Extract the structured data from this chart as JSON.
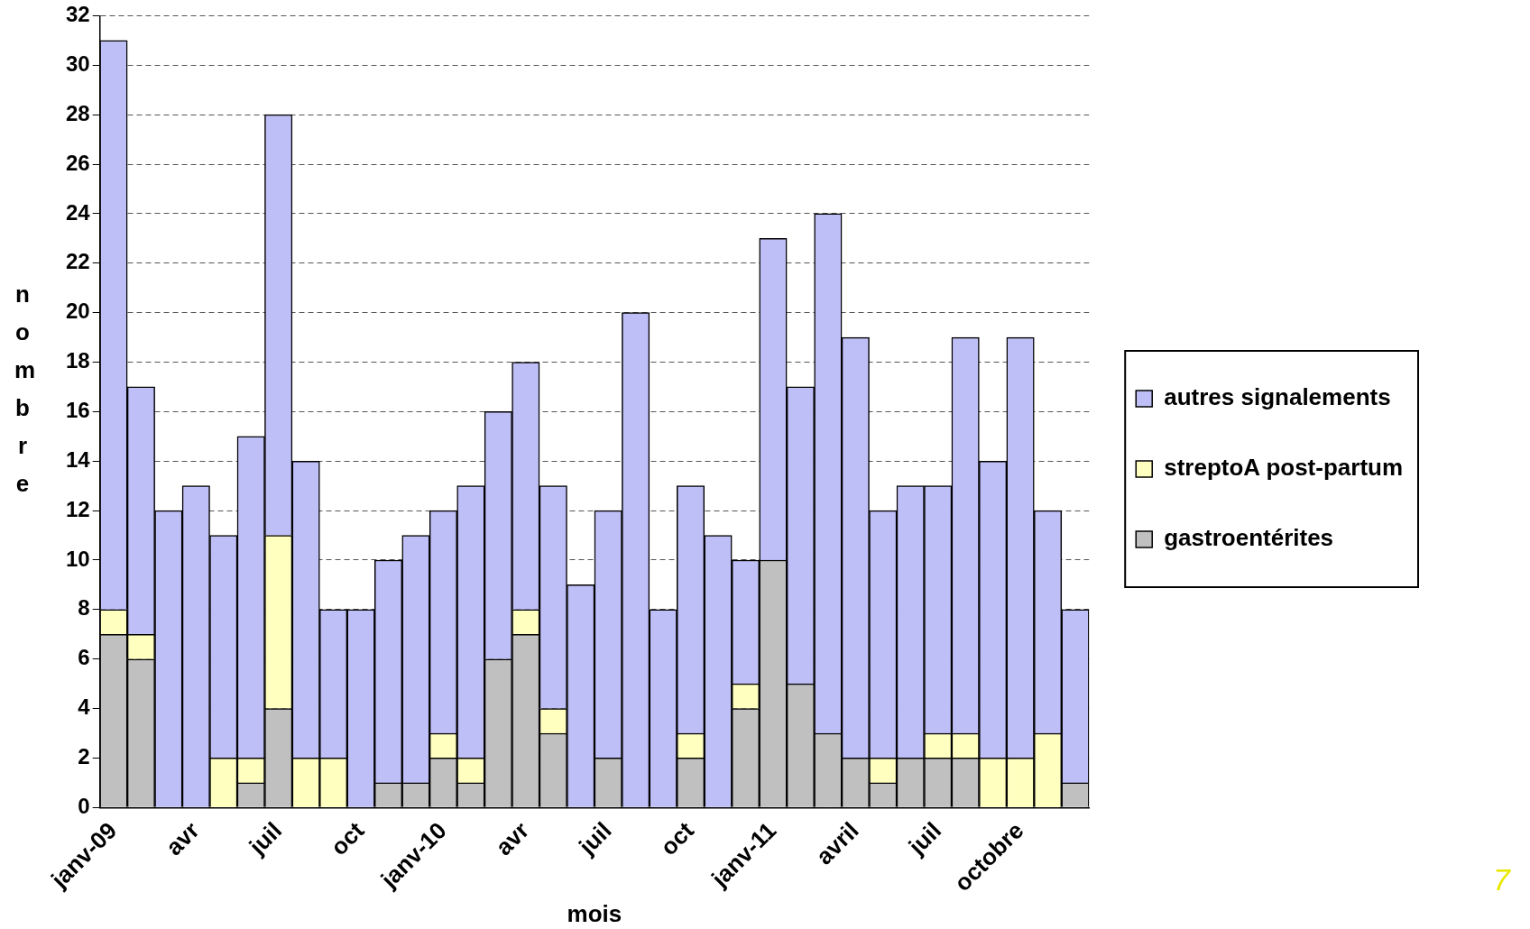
{
  "chart_data": {
    "type": "bar",
    "stacked": true,
    "xlabel": "mois",
    "ylabel": "nombre",
    "categories": [
      "janv-09",
      null,
      null,
      "avr",
      null,
      null,
      "juil",
      null,
      null,
      "oct",
      null,
      null,
      "janv-10",
      null,
      null,
      "avr",
      null,
      null,
      "juil",
      null,
      null,
      "oct",
      null,
      null,
      "janv-11",
      null,
      null,
      "avril",
      null,
      null,
      "juil",
      null,
      null,
      "octobre",
      null,
      null
    ],
    "series": [
      {
        "name": "gastroentérites",
        "color": "#c0c0c0",
        "values": [
          7,
          6,
          0,
          0,
          0,
          1,
          4,
          0,
          0,
          0,
          1,
          1,
          2,
          1,
          6,
          7,
          3,
          0,
          2,
          0,
          0,
          2,
          0,
          4,
          10,
          5,
          3,
          2,
          1,
          2,
          2,
          2,
          0,
          0,
          0,
          1
        ]
      },
      {
        "name": "streptoA post-partum",
        "color": "#ffffc0",
        "values": [
          1,
          1,
          0,
          0,
          2,
          1,
          7,
          2,
          2,
          0,
          0,
          0,
          1,
          1,
          0,
          1,
          1,
          0,
          0,
          0,
          0,
          1,
          0,
          1,
          0,
          0,
          0,
          0,
          1,
          0,
          1,
          1,
          2,
          2,
          3,
          0
        ]
      },
      {
        "name": "autres signalements",
        "color": "#bfbff8",
        "values": [
          23,
          10,
          12,
          13,
          9,
          13,
          17,
          12,
          6,
          8,
          9,
          10,
          9,
          11,
          10,
          10,
          9,
          9,
          10,
          20,
          8,
          10,
          11,
          5,
          13,
          12,
          21,
          17,
          10,
          11,
          10,
          16,
          12,
          17,
          9,
          7
        ]
      }
    ],
    "ylim": [
      0,
      32
    ],
    "yticks": [
      0,
      2,
      4,
      6,
      8,
      10,
      12,
      14,
      16,
      18,
      20,
      22,
      24,
      26,
      28,
      30,
      32
    ],
    "grid": "y",
    "legend": "right",
    "annotations": [
      "7"
    ]
  }
}
